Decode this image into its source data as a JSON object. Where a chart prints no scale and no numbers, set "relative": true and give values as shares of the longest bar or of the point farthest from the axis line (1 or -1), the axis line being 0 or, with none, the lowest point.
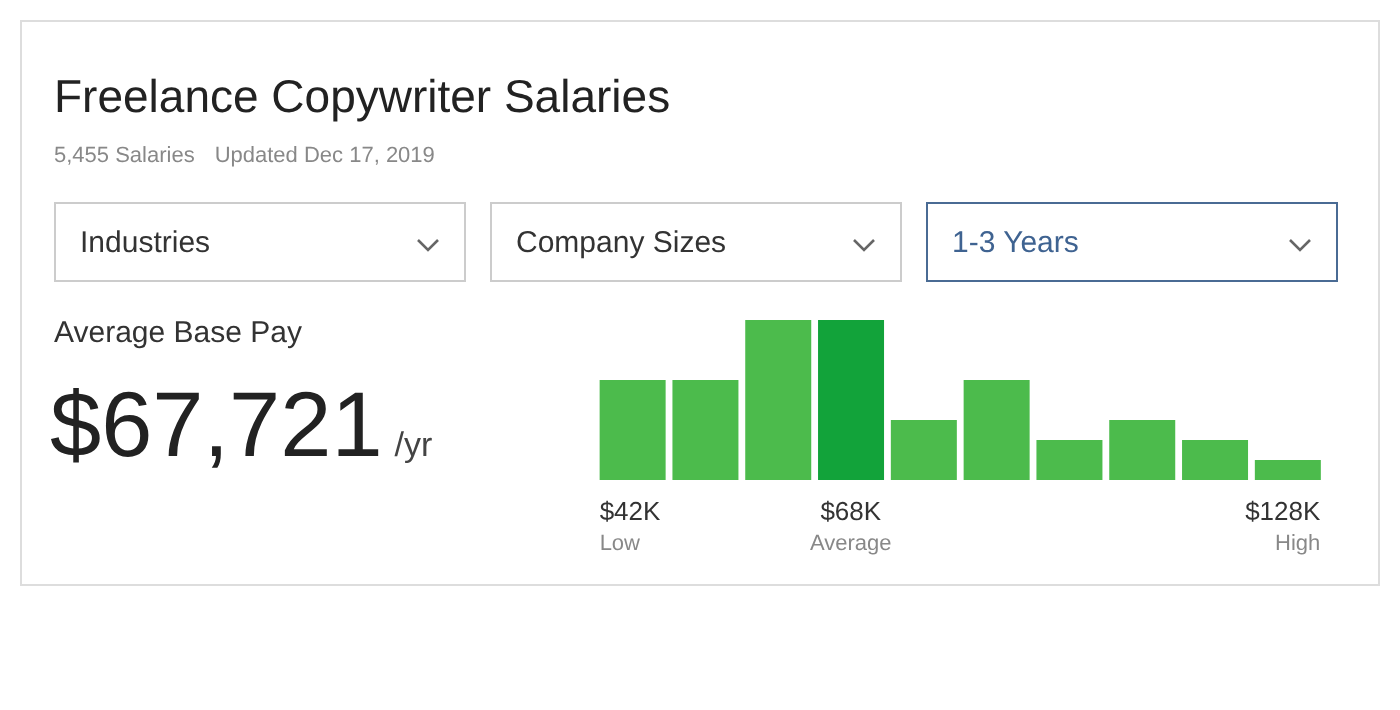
{
  "chart_data": {
    "type": "bar",
    "title": "Freelance Copywriter Salaries",
    "subtitle": "5,455 Salaries",
    "relative": true,
    "categories": [
      "$42K",
      null,
      null,
      "$68K",
      null,
      null,
      null,
      null,
      null,
      "$128K"
    ],
    "values": [
      0.625,
      0.625,
      1,
      1,
      0.375,
      0.625,
      0.25,
      0.375,
      0.25,
      0.125
    ],
    "colors": [
      "#4cbb4c",
      "#4cbb4c",
      "#4cbb4c",
      "#12a33a",
      "#4cbb4c",
      "#4cbb4c",
      "#4cbb4c",
      "#4cbb4c",
      "#4cbb4c",
      "#4cbb4c"
    ],
    "annotations": [
      "Updated Dec 17, 2019",
      "Industries",
      "Company Sizes",
      "1-3 Years",
      "Average Base Pay",
      "$67,721",
      "/yr",
      "Low",
      "Average",
      "High"
    ],
    "grid": false,
    "legend": false
  }
}
